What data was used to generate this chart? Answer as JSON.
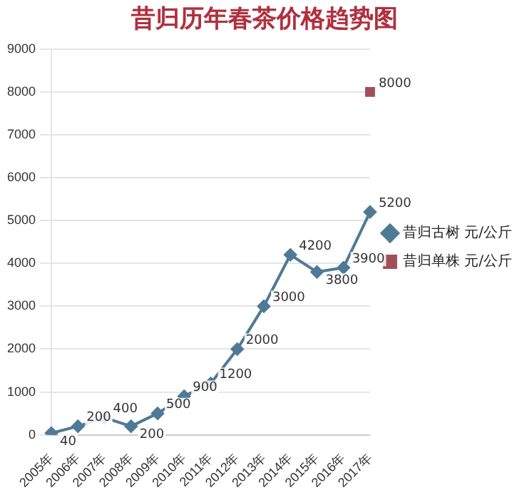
{
  "chart_data": {
    "type": "line",
    "title": "昔归历年春茶价格趋势图",
    "categories": [
      "2005年",
      "2006年",
      "2007年",
      "2008年",
      "2009年",
      "2010年",
      "2011年",
      "2012年",
      "2013年",
      "2014年",
      "2015年",
      "2016年",
      "2017年"
    ],
    "series": [
      {
        "name": "昔归古树 元/公斤",
        "type": "line",
        "color": "#4f7a95",
        "marker": "diamond",
        "values": [
          40,
          200,
          400,
          200,
          500,
          900,
          1200,
          2000,
          3000,
          4200,
          3800,
          3900,
          5200
        ]
      },
      {
        "name": "昔归单株 元/公斤",
        "type": "scatter",
        "color": "#a0505a",
        "marker": "square",
        "values": [
          null,
          null,
          null,
          null,
          null,
          null,
          null,
          null,
          null,
          null,
          null,
          null,
          8000
        ]
      }
    ],
    "ylim": [
      0,
      9000
    ],
    "yticks": [
      0,
      1000,
      2000,
      3000,
      4000,
      5000,
      6000,
      7000,
      8000,
      9000
    ],
    "grid": "y",
    "legend": "right",
    "data_labels": true
  }
}
